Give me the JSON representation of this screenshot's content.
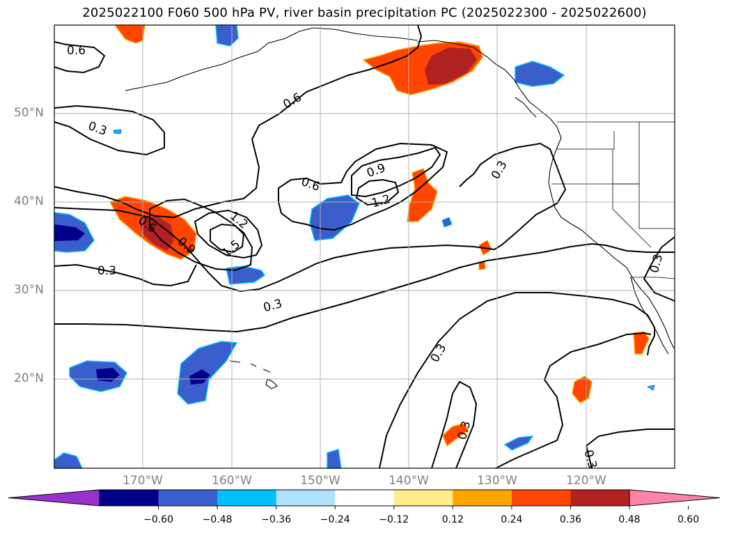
{
  "title": "2025022100 F060 500 hPa PV, river basin precipitation PC (2025022300 - 2025022600)",
  "map": {
    "lon_range": [
      -180,
      -110
    ],
    "lat_range": [
      10,
      60
    ],
    "lat_ticks": [
      "50°N",
      "40°N",
      "30°N",
      "20°N"
    ],
    "lon_ticks": [
      "170°W",
      "160°W",
      "150°W",
      "140°W",
      "130°W",
      "120°W"
    ],
    "grid": true,
    "contour_labels": [
      {
        "text": "0.6"
      },
      {
        "text": "0.3"
      },
      {
        "text": "0.6"
      },
      {
        "text": "0.6"
      },
      {
        "text": "0.9"
      },
      {
        "text": "1.2"
      },
      {
        "text": "0.3"
      },
      {
        "text": "0.6"
      },
      {
        "text": "0.9"
      },
      {
        "text": "1.2"
      },
      {
        "text": "1.5"
      },
      {
        "text": "0.3"
      },
      {
        "text": "0.3"
      },
      {
        "text": "0.3"
      },
      {
        "text": "0.3"
      },
      {
        "text": "0.3"
      },
      {
        "text": "0.3"
      }
    ]
  },
  "colorbar": {
    "ticks": [
      "−0.60",
      "−0.48",
      "−0.36",
      "−0.24",
      "−0.12",
      "0.12",
      "0.24",
      "0.36",
      "0.48",
      "0.60"
    ],
    "colors": [
      "#9932cc",
      "#00008b",
      "#3a5fcd",
      "#00bfff",
      "#b0e2ff",
      "#ffffff",
      "#ffec8b",
      "#ffa500",
      "#ff4500",
      "#b22222",
      "#ff82ab"
    ]
  }
}
